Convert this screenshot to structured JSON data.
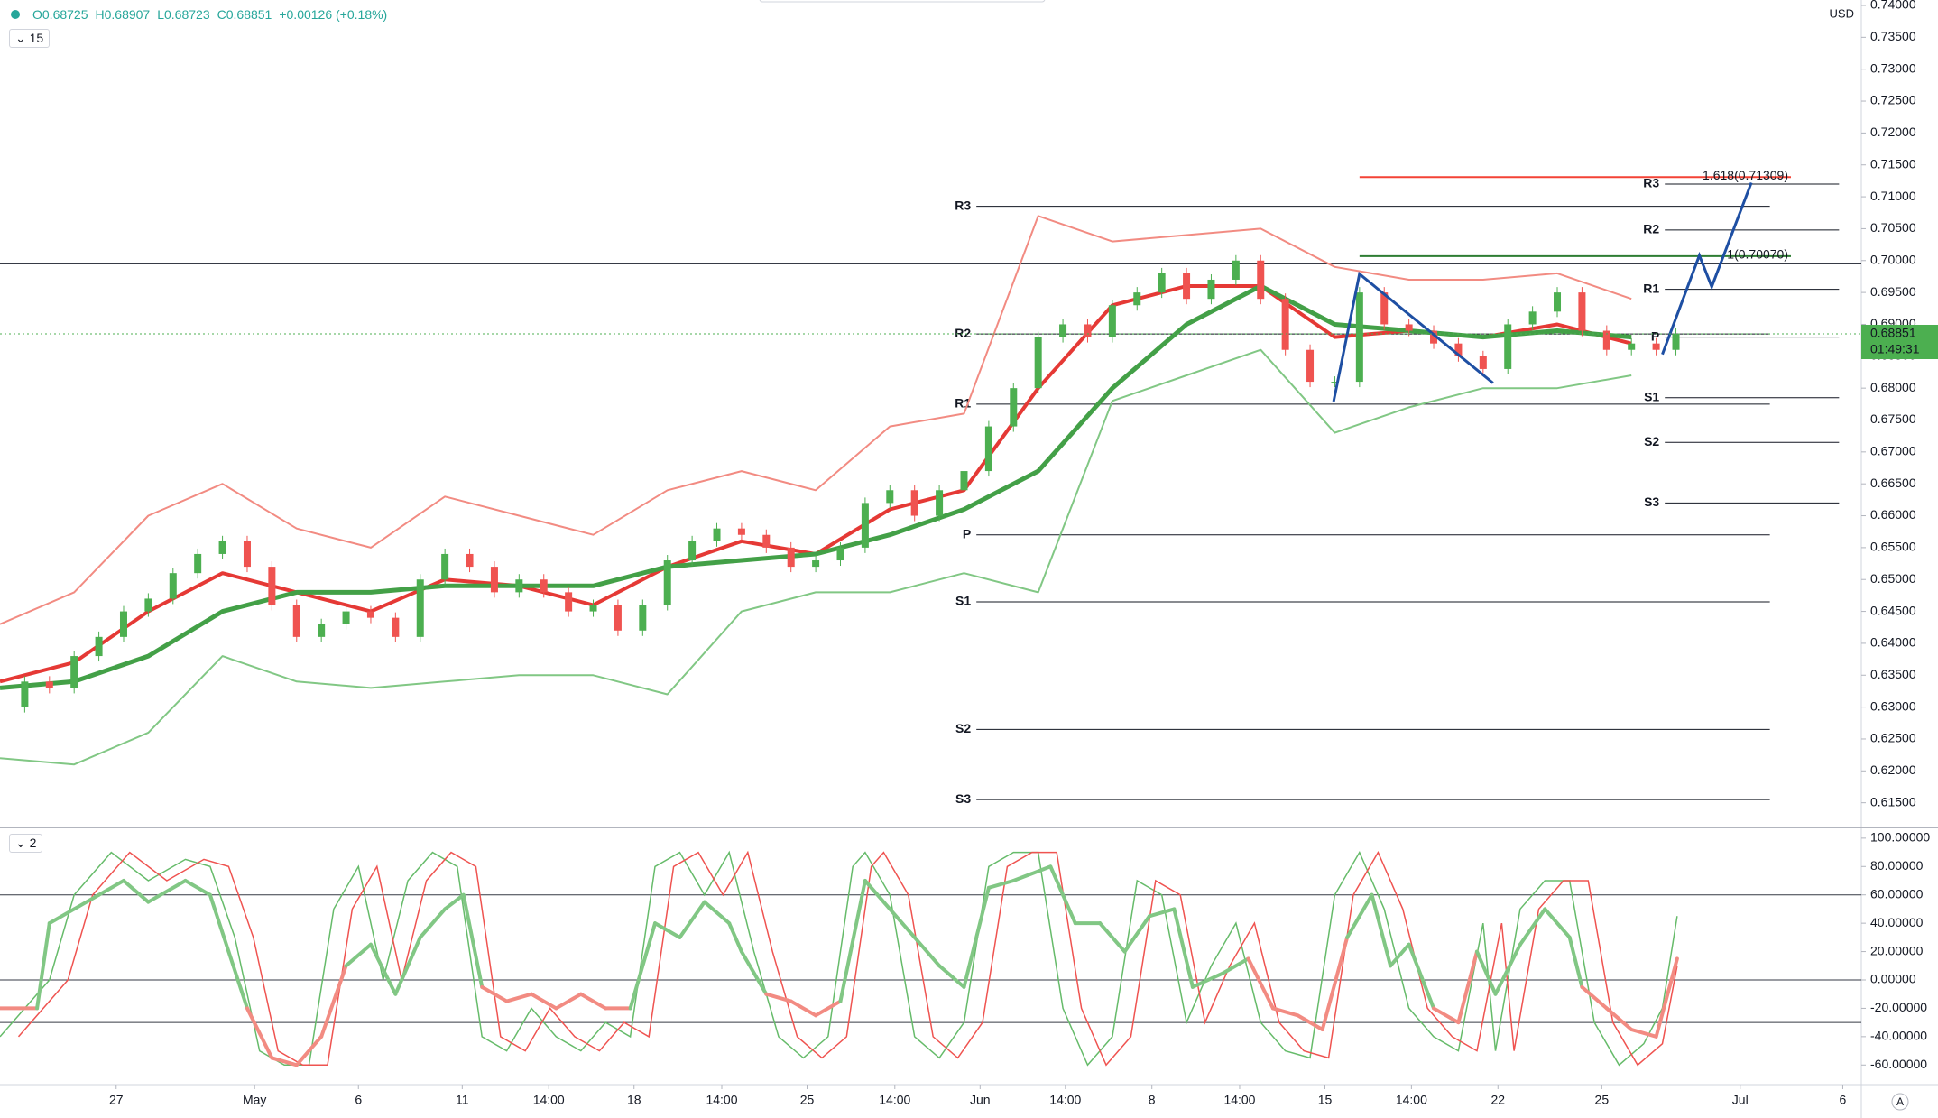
{
  "chart_data": [
    {
      "type": "candlestick",
      "header": {
        "open": "O0.68725",
        "high": "H0.68907",
        "low": "L0.68723",
        "close": "C0.68851",
        "change": "+0.00126 (+0.18%)"
      },
      "interval": "15",
      "currency": "USD",
      "xlim": [
        0,
        150.6
      ],
      "xticks": [
        {
          "value": 9.4,
          "label": "27"
        },
        {
          "value": 20.6,
          "label": "May"
        },
        {
          "value": 29,
          "label": "6"
        },
        {
          "value": 37.4,
          "label": "11"
        },
        {
          "value": 44.4,
          "label": "14:00"
        },
        {
          "value": 51.3,
          "label": "18"
        },
        {
          "value": 58.4,
          "label": "14:00"
        },
        {
          "value": 65.3,
          "label": "25"
        },
        {
          "value": 72.4,
          "label": "14:00"
        },
        {
          "value": 79.3,
          "label": "Jun"
        },
        {
          "value": 86.2,
          "label": "14:00"
        },
        {
          "value": 93.2,
          "label": "8"
        },
        {
          "value": 100.3,
          "label": "14:00"
        },
        {
          "value": 107.2,
          "label": "15"
        },
        {
          "value": 114.2,
          "label": "14:00"
        },
        {
          "value": 121.2,
          "label": "22"
        },
        {
          "value": 129.6,
          "label": "25"
        },
        {
          "value": 140.8,
          "label": "Jul"
        },
        {
          "value": 149.1,
          "label": "6"
        }
      ],
      "ylim": [
        0.61,
        0.74
      ],
      "yticks": [
        {
          "value": 0.615,
          "label": "0.61500"
        },
        {
          "value": 0.62,
          "label": "0.62000"
        },
        {
          "value": 0.625,
          "label": "0.62500"
        },
        {
          "value": 0.63,
          "label": "0.63000"
        },
        {
          "value": 0.635,
          "label": "0.63500"
        },
        {
          "value": 0.64,
          "label": "0.64000"
        },
        {
          "value": 0.645,
          "label": "0.64500"
        },
        {
          "value": 0.65,
          "label": "0.65000"
        },
        {
          "value": 0.655,
          "label": "0.65500"
        },
        {
          "value": 0.66,
          "label": "0.66000"
        },
        {
          "value": 0.665,
          "label": "0.66500"
        },
        {
          "value": 0.67,
          "label": "0.67000"
        },
        {
          "value": 0.675,
          "label": "0.67500"
        },
        {
          "value": 0.68,
          "label": "0.68000"
        },
        {
          "value": 0.685,
          "label": "0.68500"
        },
        {
          "value": 0.69,
          "label": "0.69000"
        },
        {
          "value": 0.695,
          "label": "0.69500"
        },
        {
          "value": 0.7,
          "label": "0.70000"
        },
        {
          "value": 0.705,
          "label": "0.70500"
        },
        {
          "value": 0.71,
          "label": "0.71000"
        },
        {
          "value": 0.715,
          "label": "0.71500"
        },
        {
          "value": 0.72,
          "label": "0.72000"
        },
        {
          "value": 0.725,
          "label": "0.72500"
        },
        {
          "value": 0.73,
          "label": "0.73000"
        },
        {
          "value": 0.735,
          "label": "0.73500"
        },
        {
          "value": 0.74,
          "label": "0.74000"
        }
      ],
      "up_color": "#4caf50",
      "down_color": "#ef5350",
      "x": [
        0,
        2,
        4,
        6,
        8,
        10,
        12,
        14,
        16,
        18,
        20,
        22,
        24,
        26,
        28,
        30,
        32,
        34,
        36,
        38,
        40,
        42,
        44,
        46,
        48,
        50,
        52,
        54,
        56,
        58,
        60,
        62,
        64,
        66,
        68,
        70,
        72,
        74,
        76,
        78,
        80,
        82,
        84,
        86,
        88,
        90,
        92,
        94,
        96,
        98,
        100,
        102,
        104,
        106,
        108,
        110,
        112,
        114,
        116,
        118,
        120,
        122,
        124,
        126,
        128,
        130,
        132,
        134,
        135.6
      ],
      "close": [
        0.63,
        0.634,
        0.633,
        0.638,
        0.641,
        0.645,
        0.647,
        0.651,
        0.654,
        0.656,
        0.652,
        0.646,
        0.641,
        0.643,
        0.645,
        0.644,
        0.641,
        0.65,
        0.654,
        0.652,
        0.648,
        0.65,
        0.648,
        0.645,
        0.646,
        0.642,
        0.646,
        0.653,
        0.656,
        0.658,
        0.657,
        0.655,
        0.652,
        0.653,
        0.655,
        0.662,
        0.664,
        0.66,
        0.664,
        0.667,
        0.674,
        0.68,
        0.688,
        0.69,
        0.688,
        0.693,
        0.695,
        0.698,
        0.694,
        0.697,
        0.7,
        0.694,
        0.686,
        0.681,
        0.681,
        0.695,
        0.69,
        0.689,
        0.687,
        0.685,
        0.683,
        0.69,
        0.692,
        0.695,
        0.689,
        0.686,
        0.687,
        0.686,
        0.68851
      ],
      "overlay_x": [
        0,
        6,
        12,
        18,
        24,
        30,
        36,
        42,
        48,
        54,
        60,
        66,
        72,
        78,
        84,
        90,
        96,
        102,
        108,
        114,
        120,
        126,
        132
      ],
      "overlays": [
        {
          "color": "#f28b82",
          "width": 2,
          "values": [
            0.643,
            0.648,
            0.66,
            0.665,
            0.658,
            0.655,
            0.663,
            0.66,
            0.657,
            0.664,
            0.667,
            0.664,
            0.674,
            0.676,
            0.707,
            0.703,
            0.704,
            0.705,
            0.699,
            0.697,
            0.697,
            0.698,
            0.694
          ]
        },
        {
          "color": "#81c784",
          "width": 2,
          "values": [
            0.622,
            0.621,
            0.626,
            0.638,
            0.634,
            0.633,
            0.634,
            0.635,
            0.635,
            0.632,
            0.645,
            0.648,
            0.648,
            0.651,
            0.648,
            0.678,
            0.682,
            0.686,
            0.673,
            0.677,
            0.68,
            0.68,
            0.682
          ]
        },
        {
          "color": "#e53935",
          "width": 4,
          "values": [
            0.634,
            0.637,
            0.645,
            0.651,
            0.648,
            0.645,
            0.65,
            0.649,
            0.646,
            0.652,
            0.656,
            0.654,
            0.661,
            0.664,
            0.68,
            0.693,
            0.696,
            0.696,
            0.688,
            0.689,
            0.688,
            0.69,
            0.687
          ]
        },
        {
          "color": "#43a047",
          "width": 5,
          "values": [
            0.633,
            0.634,
            0.638,
            0.645,
            0.648,
            0.648,
            0.649,
            0.649,
            0.649,
            0.652,
            0.653,
            0.654,
            0.657,
            0.661,
            0.667,
            0.68,
            0.69,
            0.696,
            0.69,
            0.689,
            0.688,
            0.689,
            0.688
          ]
        }
      ],
      "pivots": [
        {
          "xrange": [
            79,
            143.2
          ],
          "labels": [
            "R3",
            "R2",
            "R1",
            "P",
            "S1",
            "S2",
            "S3"
          ],
          "values": [
            0.7085,
            0.6885,
            0.6775,
            0.657,
            0.6465,
            0.6265,
            0.6155
          ]
        },
        {
          "xrange": [
            134.7,
            148.8
          ],
          "labels": [
            "R3",
            "R2",
            "R1",
            "P",
            "S1",
            "S2",
            "S3"
          ],
          "values": [
            0.712,
            0.7048,
            0.6955,
            0.688,
            0.6785,
            0.6715,
            0.662
          ]
        }
      ],
      "hline": 0.6995,
      "fib_lines": [
        {
          "value": 0.71309,
          "label": "1.618(0.71309)",
          "color": "#f44336",
          "from": 110
        },
        {
          "value": 0.7007,
          "label": "1(0.70070)",
          "color": "#2e7d32",
          "from": 110
        }
      ],
      "current_price": {
        "value": 0.68851,
        "label": "0.68851",
        "countdown": "01:49:31"
      },
      "pattern_lines": [
        {
          "x": [
            107.9,
            110,
            120.8
          ],
          "values": [
            0.6779,
            0.6979,
            0.6808
          ]
        },
        {
          "x": [
            134.5,
            137.5,
            138.5,
            141.7
          ],
          "values": [
            0.6853,
            0.7008,
            0.6959,
            0.7122
          ]
        }
      ]
    },
    {
      "type": "oscillator",
      "label": "2",
      "ylim": [
        -70,
        105
      ],
      "yticks": [
        {
          "value": 100,
          "label": "100.00000"
        },
        {
          "value": 80,
          "label": "80.00000"
        },
        {
          "value": 60,
          "label": "60.00000"
        },
        {
          "value": 40,
          "label": "40.00000"
        },
        {
          "value": 20,
          "label": "20.00000"
        },
        {
          "value": 0,
          "label": "0.00000"
        },
        {
          "value": -20,
          "label": "-20.00000"
        },
        {
          "value": -40,
          "label": "-40.00000"
        },
        {
          "value": -60,
          "label": "-60.00000"
        }
      ],
      "levels": [
        60,
        0,
        -30
      ],
      "thin": [
        {
          "color": "#66bb6a",
          "x": [
            0,
            4,
            6,
            9,
            12,
            15,
            17,
            19,
            21,
            23,
            25,
            27,
            29,
            31,
            33,
            35,
            37,
            39,
            41,
            43,
            45,
            47,
            49,
            51,
            53,
            55,
            57,
            59,
            61,
            63,
            65,
            67,
            69,
            70,
            72,
            74,
            76,
            78,
            80,
            82,
            84,
            86,
            88,
            90,
            92,
            94,
            96,
            98,
            100,
            102,
            104,
            106,
            108,
            110,
            112,
            114,
            116,
            118,
            120,
            121,
            123,
            125,
            127,
            129,
            131,
            133,
            134.5,
            135.7
          ],
          "values": [
            -40,
            0,
            60,
            90,
            70,
            85,
            80,
            30,
            -50,
            -60,
            -60,
            50,
            80,
            0,
            70,
            90,
            80,
            -40,
            -50,
            -20,
            -40,
            -50,
            -30,
            -40,
            80,
            90,
            60,
            90,
            20,
            -40,
            -55,
            -40,
            80,
            90,
            60,
            -40,
            -55,
            -30,
            80,
            90,
            90,
            -20,
            -60,
            -40,
            70,
            60,
            -30,
            10,
            40,
            -30,
            -50,
            -55,
            60,
            90,
            50,
            -20,
            -40,
            -50,
            40,
            -50,
            50,
            70,
            70,
            -30,
            -60,
            -45,
            -20,
            45
          ]
        },
        {
          "color": "#ef5350",
          "x": [
            1.5,
            5.5,
            7.5,
            10.5,
            13.5,
            16.5,
            18.5,
            20.5,
            22.5,
            24.5,
            26.5,
            28.5,
            30.5,
            32.5,
            34.5,
            36.5,
            38.5,
            40.5,
            42.5,
            44.5,
            46.5,
            48.5,
            50.5,
            52.5,
            54.5,
            56.5,
            58.5,
            60.5,
            62.5,
            64.5,
            66.5,
            68.5,
            70.5,
            71.5,
            73.5,
            75.5,
            77.5,
            79.5,
            81.5,
            83.5,
            85.5,
            87.5,
            89.5,
            91.5,
            93.5,
            95.5,
            97.5,
            99.5,
            101.5,
            103.5,
            105.5,
            107.5,
            109.5,
            111.5,
            113.5,
            115.5,
            117.5,
            119.5,
            121.5,
            122.5,
            124.5,
            126.5,
            128.5,
            130.5,
            132.5,
            134.5,
            135.7
          ],
          "values": [
            -40,
            0,
            60,
            90,
            70,
            85,
            80,
            30,
            -50,
            -60,
            -60,
            50,
            80,
            0,
            70,
            90,
            80,
            -40,
            -50,
            -20,
            -40,
            -50,
            -30,
            -40,
            80,
            90,
            60,
            90,
            20,
            -40,
            -55,
            -40,
            80,
            90,
            60,
            -40,
            -55,
            -30,
            80,
            90,
            90,
            -20,
            -60,
            -40,
            70,
            60,
            -30,
            10,
            40,
            -30,
            -50,
            -55,
            60,
            90,
            50,
            -20,
            -40,
            -50,
            40,
            -50,
            50,
            70,
            70,
            -30,
            -60,
            -45,
            10
          ]
        }
      ],
      "main": {
        "up_color": "#81c784",
        "down_color": "#f28b82",
        "x": [
          0,
          3,
          4,
          6,
          8,
          10,
          12,
          15,
          17,
          18.5,
          20,
          22,
          24,
          26,
          28,
          30,
          32,
          34,
          36,
          37.5,
          39,
          41,
          43,
          45,
          47,
          49,
          51,
          53,
          55,
          57,
          59,
          60,
          62,
          64,
          66,
          68,
          70,
          72,
          74,
          76,
          78,
          80,
          82,
          85,
          87,
          89,
          91,
          93,
          95,
          96.5,
          99,
          101,
          103,
          105,
          107,
          109,
          111,
          112.5,
          114,
          116,
          118,
          119.5,
          121,
          123,
          125,
          127,
          128,
          130,
          132,
          134,
          135.7
        ],
        "values": [
          -20,
          -20,
          40,
          50,
          60,
          70,
          55,
          70,
          60,
          20,
          -20,
          -55,
          -60,
          -40,
          10,
          25,
          -10,
          30,
          50,
          60,
          -5,
          -15,
          -10,
          -20,
          -10,
          -20,
          -20,
          40,
          30,
          55,
          40,
          20,
          -10,
          -15,
          -25,
          -15,
          70,
          50,
          30,
          10,
          -5,
          65,
          70,
          80,
          40,
          40,
          20,
          45,
          50,
          -5,
          5,
          15,
          -20,
          -25,
          -35,
          30,
          60,
          10,
          25,
          -20,
          -30,
          20,
          -10,
          25,
          50,
          30,
          -5,
          -20,
          -35,
          -40,
          15
        ]
      }
    }
  ]
}
